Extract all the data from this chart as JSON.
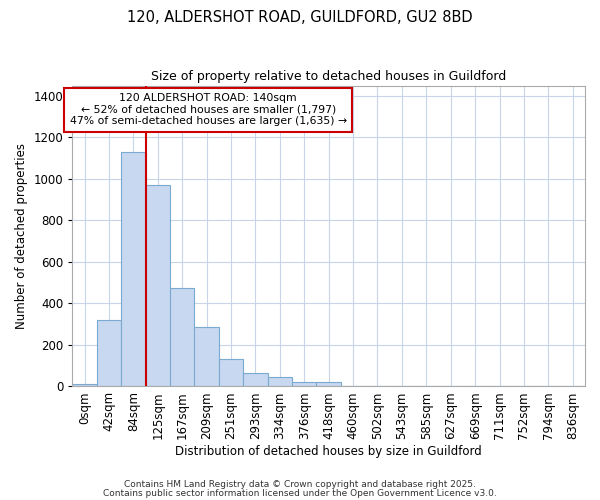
{
  "title_line1": "120, ALDERSHOT ROAD, GUILDFORD, GU2 8BD",
  "title_line2": "Size of property relative to detached houses in Guildford",
  "xlabel": "Distribution of detached houses by size in Guildford",
  "ylabel": "Number of detached properties",
  "bar_values": [
    10,
    320,
    1130,
    970,
    475,
    285,
    130,
    65,
    45,
    22,
    22,
    0,
    0,
    0,
    0,
    0,
    0,
    0,
    0,
    0,
    0
  ],
  "bin_labels": [
    "0sqm",
    "42sqm",
    "84sqm",
    "125sqm",
    "167sqm",
    "209sqm",
    "251sqm",
    "293sqm",
    "334sqm",
    "376sqm",
    "418sqm",
    "460sqm",
    "502sqm",
    "543sqm",
    "585sqm",
    "627sqm",
    "669sqm",
    "711sqm",
    "752sqm",
    "794sqm",
    "836sqm"
  ],
  "ylim": [
    0,
    1450
  ],
  "yticks": [
    0,
    200,
    400,
    600,
    800,
    1000,
    1200,
    1400
  ],
  "bar_color": "#c8d8f0",
  "bar_edge_color": "#7aaad0",
  "vline_x": 3.0,
  "vline_color": "#cc0000",
  "annotation_title": "120 ALDERSHOT ROAD: 140sqm",
  "annotation_line2": "← 52% of detached houses are smaller (1,797)",
  "annotation_line3": "47% of semi-detached houses are larger (1,635) →",
  "annotation_box_color": "#cc0000",
  "footnote1": "Contains HM Land Registry data © Crown copyright and database right 2025.",
  "footnote2": "Contains public sector information licensed under the Open Government Licence v3.0.",
  "background_color": "#ffffff",
  "plot_bg_color": "#ffffff",
  "grid_color": "#c8d4e8"
}
